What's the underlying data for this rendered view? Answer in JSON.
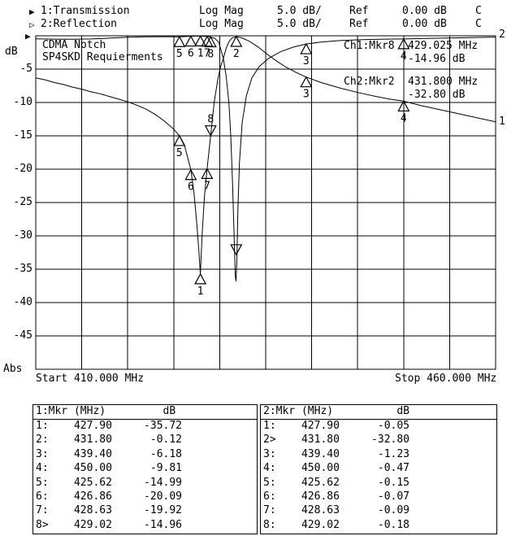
{
  "icons": {
    "arrow_filled": "▶",
    "arrow_hollow": "▷"
  },
  "header": {
    "rows": [
      {
        "arrow": "filled",
        "label": "1:Transmission",
        "format": "Log Mag",
        "scale": "5.0 dB/",
        "ref_label": "Ref",
        "ref_value": "0.00 dB",
        "cal": "C"
      },
      {
        "arrow": "hollow",
        "label": "2:Reflection",
        "format": "Log Mag",
        "scale": "5.0 dB/",
        "ref_label": "Ref",
        "ref_value": "0.00 dB",
        "cal": "C"
      }
    ]
  },
  "chart": {
    "title_line1": "CDMA Notch",
    "title_line2": "SP4SKD Requierments",
    "y_axis_label": "dB",
    "y_axis_bottom_label": "Abs",
    "y_ticks": [
      -5,
      -10,
      -15,
      -20,
      -25,
      -30,
      -35,
      -40,
      -45
    ],
    "x_start_label": "Start 410.000 MHz",
    "x_stop_label": "Stop 460.000 MHz",
    "readouts": {
      "ch1_prefix": "Ch1:Mkr8",
      "ch1_freq": "429.025 MHz",
      "ch1_value": "-14.96 dB",
      "ch2_prefix": "Ch2:Mkr2",
      "ch2_freq": "431.800 MHz",
      "ch2_value": "-32.80 dB"
    },
    "trace1_end_label": "1",
    "trace2_end_label": "2"
  },
  "chart_data": {
    "type": "line",
    "x_range_mhz": [
      410,
      460
    ],
    "y_range_db": [
      -50,
      0
    ],
    "grid_step_mhz": 5,
    "grid_step_db": 5,
    "series": [
      {
        "name": "Transmission",
        "points": [
          [
            410,
            -6.3
          ],
          [
            411,
            -6.6
          ],
          [
            412,
            -7.0
          ],
          [
            413,
            -7.3
          ],
          [
            414,
            -7.7
          ],
          [
            415,
            -8.0
          ],
          [
            416,
            -8.4
          ],
          [
            417,
            -8.7
          ],
          [
            418,
            -9.1
          ],
          [
            419,
            -9.5
          ],
          [
            420,
            -9.9
          ],
          [
            421,
            -10.4
          ],
          [
            422,
            -11.0
          ],
          [
            423,
            -11.8
          ],
          [
            424,
            -12.8
          ],
          [
            425,
            -14.0
          ],
          [
            425.62,
            -14.99
          ],
          [
            426.2,
            -16.6
          ],
          [
            426.86,
            -20.09
          ],
          [
            427.2,
            -23.5
          ],
          [
            427.5,
            -28.0
          ],
          [
            427.75,
            -32.5
          ],
          [
            427.9,
            -35.72
          ],
          [
            428.1,
            -29.5
          ],
          [
            428.35,
            -24.0
          ],
          [
            428.63,
            -19.92
          ],
          [
            429.02,
            -14.96
          ],
          [
            429.4,
            -10.0
          ],
          [
            429.8,
            -6.5
          ],
          [
            430.1,
            -4.6
          ],
          [
            430.4,
            -3.4
          ],
          [
            430.7,
            -1.9
          ],
          [
            431.0,
            -0.9
          ],
          [
            431.3,
            -0.35
          ],
          [
            431.8,
            -0.12
          ],
          [
            432.4,
            -0.3
          ],
          [
            433.2,
            -0.8
          ],
          [
            434.2,
            -1.7
          ],
          [
            435.2,
            -2.8
          ],
          [
            436.2,
            -3.8
          ],
          [
            437.2,
            -4.7
          ],
          [
            438.3,
            -5.5
          ],
          [
            439.4,
            -6.18
          ],
          [
            441,
            -7.0
          ],
          [
            443,
            -7.8
          ],
          [
            445,
            -8.5
          ],
          [
            447,
            -9.1
          ],
          [
            448.5,
            -9.5
          ],
          [
            450,
            -9.81
          ],
          [
            452,
            -10.5
          ],
          [
            454,
            -11.1
          ],
          [
            456,
            -11.7
          ],
          [
            458,
            -12.3
          ],
          [
            460,
            -12.9
          ]
        ]
      },
      {
        "name": "Reflection",
        "points": [
          [
            410,
            -0.45
          ],
          [
            412,
            -0.5
          ],
          [
            414,
            -0.52
          ],
          [
            416,
            -0.48
          ],
          [
            418,
            -0.35
          ],
          [
            420,
            -0.22
          ],
          [
            422,
            -0.15
          ],
          [
            424,
            -0.13
          ],
          [
            425.62,
            -0.15
          ],
          [
            426.5,
            -0.1
          ],
          [
            426.86,
            -0.07
          ],
          [
            427.4,
            -0.05
          ],
          [
            427.9,
            -0.05
          ],
          [
            428.63,
            -0.09
          ],
          [
            429.02,
            -0.18
          ],
          [
            429.5,
            -0.4
          ],
          [
            429.9,
            -1.0
          ],
          [
            430.4,
            -3.4
          ],
          [
            430.7,
            -6.0
          ],
          [
            431.0,
            -10.0
          ],
          [
            431.2,
            -15.0
          ],
          [
            431.4,
            -22.0
          ],
          [
            431.55,
            -29.0
          ],
          [
            431.7,
            -36.0
          ],
          [
            431.78,
            -36.8
          ],
          [
            431.88,
            -33.0
          ],
          [
            431.98,
            -26.0
          ],
          [
            432.15,
            -19.0
          ],
          [
            432.45,
            -13.0
          ],
          [
            432.9,
            -9.0
          ],
          [
            433.5,
            -6.3
          ],
          [
            434.3,
            -4.6
          ],
          [
            435.3,
            -3.4
          ],
          [
            436.6,
            -2.4
          ],
          [
            438.0,
            -1.7
          ],
          [
            439.4,
            -1.23
          ],
          [
            441,
            -0.95
          ],
          [
            443,
            -0.72
          ],
          [
            445.5,
            -0.57
          ],
          [
            448,
            -0.5
          ],
          [
            450,
            -0.47
          ],
          [
            453,
            -0.38
          ],
          [
            456,
            -0.3
          ],
          [
            460,
            -0.2
          ]
        ]
      }
    ],
    "markers": {
      "ch1": {
        "active": 8,
        "label_above_active": true,
        "list": [
          {
            "n": 1,
            "f": 427.9,
            "db": -35.72
          },
          {
            "n": 2,
            "f": 431.8,
            "db": -0.12
          },
          {
            "n": 3,
            "f": 439.4,
            "db": -6.18
          },
          {
            "n": 4,
            "f": 450.0,
            "db": -9.81
          },
          {
            "n": 5,
            "f": 425.62,
            "db": -14.99
          },
          {
            "n": 6,
            "f": 426.86,
            "db": -20.09
          },
          {
            "n": 7,
            "f": 428.63,
            "db": -19.92
          },
          {
            "n": 8,
            "f": 429.02,
            "db": -14.96
          }
        ]
      },
      "ch2": {
        "active": 2,
        "label_above_active": false,
        "list": [
          {
            "n": 1,
            "f": 427.9,
            "db": -0.05
          },
          {
            "n": 2,
            "f": 431.8,
            "db": -32.8
          },
          {
            "n": 3,
            "f": 439.4,
            "db": -1.23
          },
          {
            "n": 4,
            "f": 450.0,
            "db": -0.47
          },
          {
            "n": 5,
            "f": 425.62,
            "db": -0.15
          },
          {
            "n": 6,
            "f": 426.86,
            "db": -0.07
          },
          {
            "n": 7,
            "f": 428.63,
            "db": -0.09
          },
          {
            "n": 8,
            "f": 429.02,
            "db": -0.18
          }
        ]
      }
    }
  },
  "tables": [
    {
      "header": "1:Mkr (MHz)         dB",
      "rows": [
        {
          "n": "1:",
          "f": "427.90",
          "v": "-35.72"
        },
        {
          "n": "2:",
          "f": "431.80",
          "v": "-0.12"
        },
        {
          "n": "3:",
          "f": "439.40",
          "v": "-6.18"
        },
        {
          "n": "4:",
          "f": "450.00",
          "v": "-9.81"
        },
        {
          "n": "5:",
          "f": "425.62",
          "v": "-14.99"
        },
        {
          "n": "6:",
          "f": "426.86",
          "v": "-20.09"
        },
        {
          "n": "7:",
          "f": "428.63",
          "v": "-19.92"
        },
        {
          "n": "8>",
          "f": "429.02",
          "v": "-14.96"
        }
      ]
    },
    {
      "header": "2:Mkr (MHz)          dB",
      "rows": [
        {
          "n": "1:",
          "f": "427.90",
          "v": "-0.05"
        },
        {
          "n": "2>",
          "f": "431.80",
          "v": "-32.80"
        },
        {
          "n": "3:",
          "f": "439.40",
          "v": "-1.23"
        },
        {
          "n": "4:",
          "f": "450.00",
          "v": "-0.47"
        },
        {
          "n": "5:",
          "f": "425.62",
          "v": "-0.15"
        },
        {
          "n": "6:",
          "f": "426.86",
          "v": "-0.07"
        },
        {
          "n": "7:",
          "f": "428.63",
          "v": "-0.09"
        },
        {
          "n": "8:",
          "f": "429.02",
          "v": "-0.18"
        }
      ]
    }
  ]
}
